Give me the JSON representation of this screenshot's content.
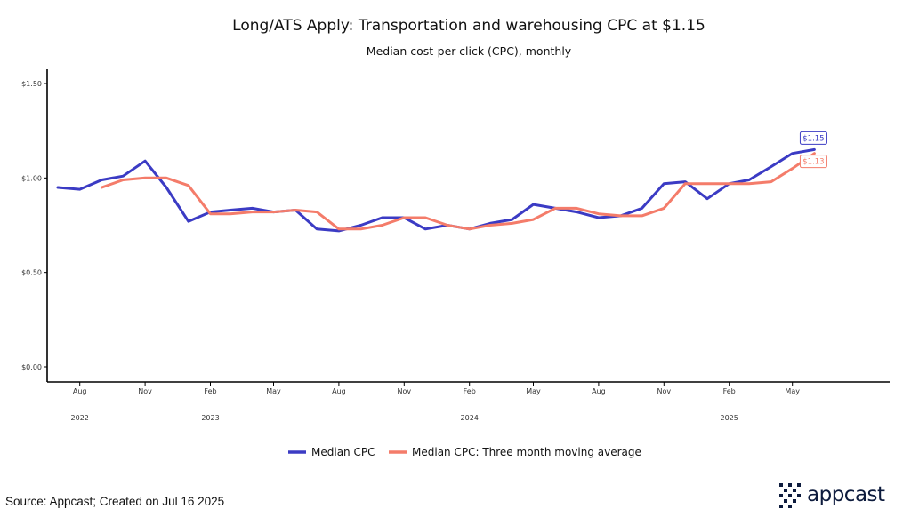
{
  "chart_data": {
    "type": "line",
    "title": "Long/ATS Apply: Transportation and warehousing CPC at $1.15",
    "subtitle": "Median cost-per-click (CPC), monthly",
    "xlabel": "",
    "ylabel": "",
    "ylim": [
      0,
      1.5
    ],
    "yticks": [
      {
        "value": 0,
        "label": "$0.00"
      },
      {
        "value": 0.5,
        "label": "$0.50"
      },
      {
        "value": 1.0,
        "label": "$1.00"
      },
      {
        "value": 1.5,
        "label": "$1.50"
      }
    ],
    "x": [
      "2022-07",
      "2022-08",
      "2022-09",
      "2022-10",
      "2022-11",
      "2022-12",
      "2023-01",
      "2023-02",
      "2023-03",
      "2023-04",
      "2023-05",
      "2023-06",
      "2023-07",
      "2023-08",
      "2023-09",
      "2023-10",
      "2023-11",
      "2023-12",
      "2024-01",
      "2024-02",
      "2024-03",
      "2024-04",
      "2024-05",
      "2024-06",
      "2024-07",
      "2024-08",
      "2024-09",
      "2024-10",
      "2024-11",
      "2024-12",
      "2025-01",
      "2025-02",
      "2025-03",
      "2025-04",
      "2025-05",
      "2025-06"
    ],
    "xlim": [
      "2022-06-16",
      "2025-09-15"
    ],
    "xticks": [
      {
        "month": "2022-08",
        "label": "Aug"
      },
      {
        "month": "2022-11",
        "label": "Nov"
      },
      {
        "month": "2023-02",
        "label": "Feb"
      },
      {
        "month": "2023-05",
        "label": "May"
      },
      {
        "month": "2023-08",
        "label": "Aug"
      },
      {
        "month": "2023-11",
        "label": "Nov"
      },
      {
        "month": "2024-02",
        "label": "Feb"
      },
      {
        "month": "2024-05",
        "label": "May"
      },
      {
        "month": "2024-08",
        "label": "Aug"
      },
      {
        "month": "2024-11",
        "label": "Nov"
      },
      {
        "month": "2025-02",
        "label": "Feb"
      },
      {
        "month": "2025-05",
        "label": "May"
      }
    ],
    "year_labels": [
      {
        "month": "2022-08",
        "label": "2022"
      },
      {
        "month": "2023-02",
        "label": "2023"
      },
      {
        "month": "2024-02",
        "label": "2024"
      },
      {
        "month": "2025-02",
        "label": "2025"
      }
    ],
    "series": [
      {
        "name": "Median CPC",
        "color": "#3b3bc4",
        "values": [
          0.95,
          0.94,
          0.99,
          1.01,
          1.09,
          0.95,
          0.77,
          0.82,
          0.83,
          0.84,
          0.82,
          0.83,
          0.73,
          0.72,
          0.75,
          0.79,
          0.79,
          0.73,
          0.75,
          0.73,
          0.76,
          0.78,
          0.86,
          0.84,
          0.82,
          0.79,
          0.8,
          0.84,
          0.97,
          0.98,
          0.89,
          0.97,
          0.99,
          1.06,
          1.13,
          1.15
        ],
        "end_label": "$1.15"
      },
      {
        "name": "Median CPC: Three month moving average",
        "color": "#f47c6a",
        "values": [
          null,
          null,
          0.95,
          0.99,
          1.0,
          1.0,
          0.96,
          0.81,
          0.81,
          0.82,
          0.82,
          0.83,
          0.82,
          0.73,
          0.73,
          0.75,
          0.79,
          0.79,
          0.75,
          0.73,
          0.75,
          0.76,
          0.78,
          0.84,
          0.84,
          0.81,
          0.8,
          0.8,
          0.84,
          0.97,
          0.97,
          0.97,
          0.97,
          0.98,
          1.05,
          1.13
        ],
        "end_label": "$1.13"
      }
    ],
    "legend_position": "bottom",
    "grid": false
  },
  "footer": {
    "source": "Source: Appcast; Created on Jul 16 2025",
    "logo_text": "appcast"
  }
}
